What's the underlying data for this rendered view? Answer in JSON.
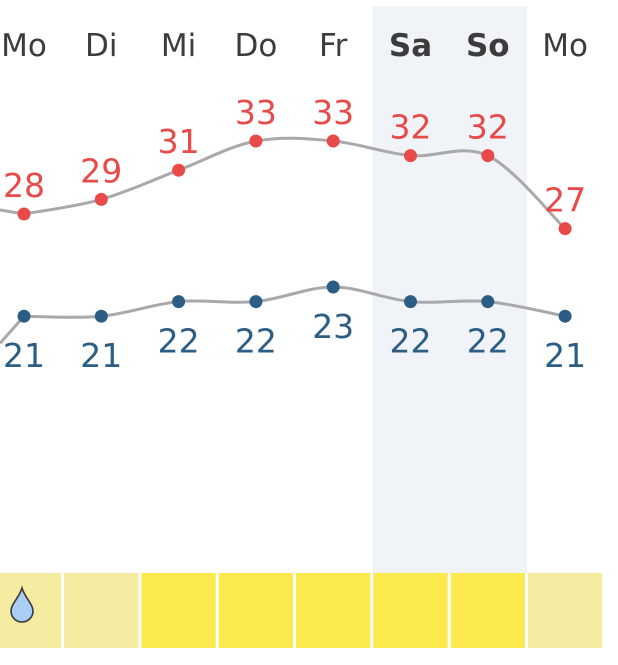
{
  "colors": {
    "high": "#e84a4a",
    "low": "#2c5d84",
    "curve": "#a9a9a9",
    "weekend_band": "#f0f3f7",
    "tile_sunny": "#fbe94e",
    "tile_mixed": "#f4eca0",
    "raindrop": "#a9cdf3"
  },
  "days": [
    "Mo",
    "Di",
    "Mi",
    "Do",
    "Fr",
    "Sa",
    "So",
    "Mo"
  ],
  "weekend": [
    false,
    false,
    false,
    false,
    false,
    true,
    true,
    false
  ],
  "conditions": [
    {
      "tile": "mixed",
      "icon": "raindrop-icon"
    },
    {
      "tile": "mixed",
      "icon": ""
    },
    {
      "tile": "sunny",
      "icon": ""
    },
    {
      "tile": "sunny",
      "icon": ""
    },
    {
      "tile": "sunny",
      "icon": ""
    },
    {
      "tile": "sunny",
      "icon": ""
    },
    {
      "tile": "sunny",
      "icon": ""
    },
    {
      "tile": "mixed",
      "icon": ""
    }
  ],
  "chart_data": {
    "type": "line",
    "categories": [
      "Mo",
      "Di",
      "Mi",
      "Do",
      "Fr",
      "Sa",
      "So",
      "Mo"
    ],
    "series": [
      {
        "key": "high",
        "values": [
          28,
          29,
          31,
          33,
          33,
          32,
          32,
          27
        ]
      },
      {
        "key": "low",
        "values": [
          21,
          21,
          22,
          22,
          23,
          22,
          22,
          21
        ]
      }
    ],
    "value_labels": {
      "high": [
        "28",
        "29",
        "31",
        "33",
        "33",
        "32",
        "32",
        "27"
      ],
      "low": [
        "21",
        "21",
        "22",
        "22",
        "23",
        "22",
        "22",
        "21"
      ]
    }
  }
}
